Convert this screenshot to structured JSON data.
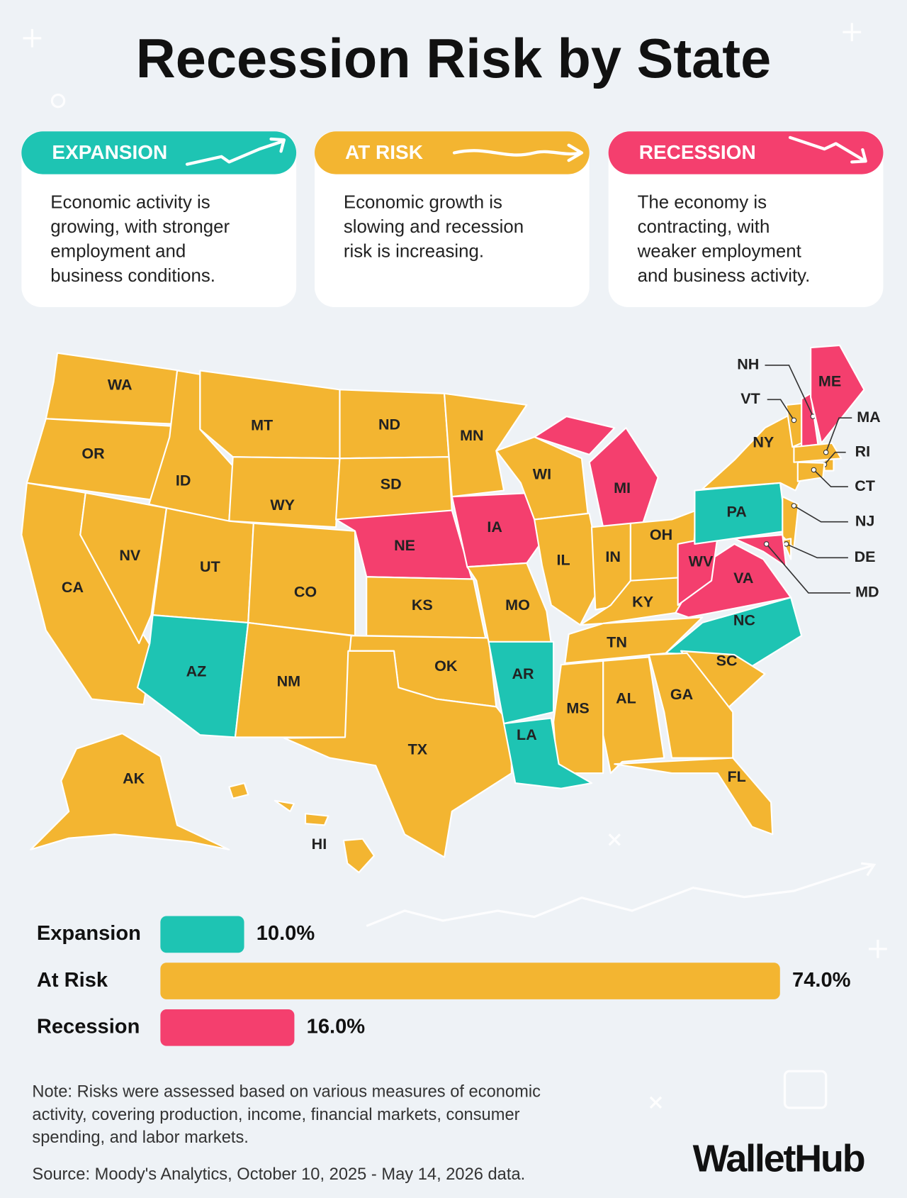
{
  "title": "Recession Risk by State",
  "legend_cards": [
    {
      "heading": "EXPANSION",
      "lines": [
        "Economic activity is",
        "growing, with stronger",
        "employment and",
        "business conditions."
      ]
    },
    {
      "heading": "AT RISK",
      "lines": [
        "Economic growth is",
        "slowing and recession",
        "risk is increasing."
      ]
    },
    {
      "heading": "RECESSION",
      "lines": [
        "The economy is",
        "contracting, with",
        "weaker employment",
        "and business activity."
      ]
    }
  ],
  "map": {
    "states": [
      {
        "label": "WA",
        "status": "At Risk"
      },
      {
        "label": "OR",
        "status": "At Risk"
      },
      {
        "label": "CA",
        "status": "At Risk"
      },
      {
        "label": "ID",
        "status": "At Risk"
      },
      {
        "label": "NV",
        "status": "At Risk"
      },
      {
        "label": "MT",
        "status": "At Risk"
      },
      {
        "label": "WY",
        "status": "At Risk"
      },
      {
        "label": "UT",
        "status": "At Risk"
      },
      {
        "label": "AZ",
        "status": "Expansion"
      },
      {
        "label": "CO",
        "status": "At Risk"
      },
      {
        "label": "NM",
        "status": "At Risk"
      },
      {
        "label": "ND",
        "status": "At Risk"
      },
      {
        "label": "SD",
        "status": "At Risk"
      },
      {
        "label": "NE",
        "status": "Recession"
      },
      {
        "label": "KS",
        "status": "At Risk"
      },
      {
        "label": "OK",
        "status": "At Risk"
      },
      {
        "label": "TX",
        "status": "At Risk"
      },
      {
        "label": "MN",
        "status": "At Risk"
      },
      {
        "label": "IA",
        "status": "Recession"
      },
      {
        "label": "MO",
        "status": "At Risk"
      },
      {
        "label": "WI",
        "status": "At Risk"
      },
      {
        "label": "IL",
        "status": "At Risk"
      },
      {
        "label": "MI",
        "status": "Recession"
      },
      {
        "label": "IN",
        "status": "At Risk"
      },
      {
        "label": "OH",
        "status": "At Risk"
      },
      {
        "label": "KY",
        "status": "At Risk"
      },
      {
        "label": "TN",
        "status": "At Risk"
      },
      {
        "label": "VA",
        "status": "Recession"
      },
      {
        "label": "WV",
        "status": "Recession"
      },
      {
        "label": "PA",
        "status": "Expansion"
      },
      {
        "label": "NY",
        "status": "At Risk"
      },
      {
        "label": "NC",
        "status": "Expansion"
      },
      {
        "label": "SC",
        "status": "At Risk"
      },
      {
        "label": "GA",
        "status": "At Risk"
      },
      {
        "label": "AL",
        "status": "At Risk"
      },
      {
        "label": "MS",
        "status": "At Risk"
      },
      {
        "label": "AR",
        "status": "Expansion"
      },
      {
        "label": "LA",
        "status": "Expansion"
      },
      {
        "label": "FL",
        "status": "At Risk"
      },
      {
        "label": "NJ",
        "status": "At Risk"
      },
      {
        "label": "DE",
        "status": "At Risk"
      },
      {
        "label": "MD",
        "status": "Recession"
      },
      {
        "label": "VT",
        "status": "At Risk"
      },
      {
        "label": "NH",
        "status": "Recession"
      },
      {
        "label": "ME",
        "status": "Recession"
      },
      {
        "label": "MA",
        "status": "At Risk"
      },
      {
        "label": "RI",
        "status": "At Risk"
      },
      {
        "label": "CT",
        "status": "At Risk"
      },
      {
        "label": "AK",
        "status": "At Risk"
      },
      {
        "label": "HI",
        "status": "At Risk"
      }
    ]
  },
  "chart_data": {
    "type": "bar",
    "orientation": "horizontal",
    "categories": [
      "Expansion",
      "At Risk",
      "Recession"
    ],
    "values": [
      10.0,
      74.0,
      16.0
    ],
    "value_labels": [
      "10.0%",
      "74.0%",
      "16.0%"
    ],
    "colors": [
      "#1ec4b3",
      "#f3b531",
      "#f43f6e"
    ]
  },
  "note": [
    "Note: Risks were assessed based on various measures of economic",
    "activity, covering production, income, financial markets, consumer",
    "spending, and labor markets."
  ],
  "source": "Source: Moody's Analytics, October 10, 2025 - May 14, 2026 data.",
  "brand": "WalletHub"
}
